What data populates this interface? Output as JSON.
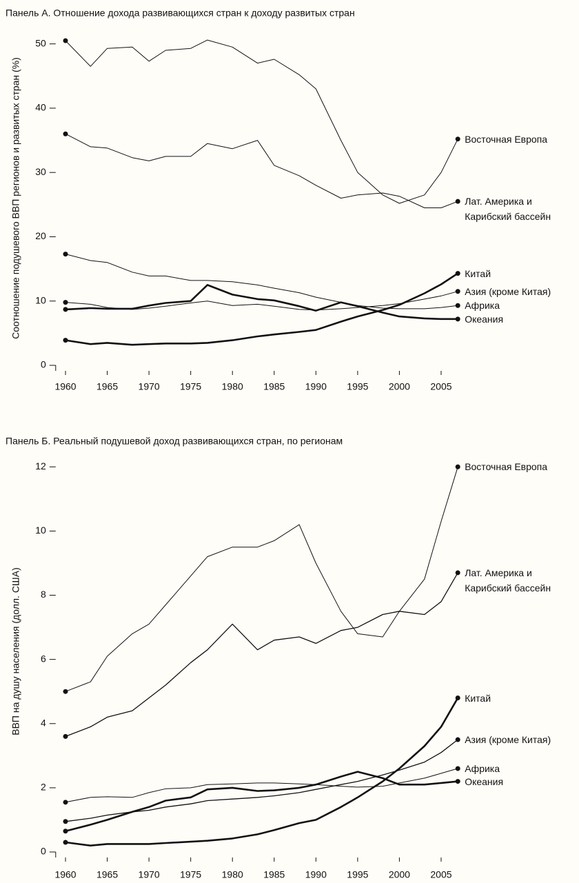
{
  "chart_data": [
    {
      "type": "line",
      "title": "Панель А. Отношение дохода развивающихся стран к доходу развитых стран",
      "y_label": "Соотношение подушевого ВВП регионов и развитых стран (%)",
      "x": [
        1960,
        1963,
        1965,
        1968,
        1970,
        1972,
        1975,
        1977,
        1980,
        1983,
        1985,
        1988,
        1990,
        1993,
        1995,
        1998,
        2000,
        2003,
        2005,
        2007
      ],
      "xlim": [
        1958,
        2008
      ],
      "xticks": [
        1960,
        1965,
        1970,
        1975,
        1980,
        1985,
        1990,
        1995,
        2000,
        2005
      ],
      "ylim": [
        0,
        52
      ],
      "yticks": [
        0,
        10,
        20,
        30,
        40,
        50
      ],
      "markers": true,
      "series": [
        {
          "name": "Восточная Европа",
          "color": "#111111",
          "width": 1,
          "values": [
            50.5,
            46.5,
            49.3,
            49.5,
            47.3,
            49.0,
            49.3,
            50.6,
            49.5,
            47.0,
            47.6,
            45.2,
            43.0,
            35.0,
            30.0,
            26.5,
            25.2,
            26.5,
            30.0,
            35.2
          ]
        },
        {
          "name": "Лат. Америка и\nКарибский бассейн",
          "color": "#111111",
          "width": 1,
          "values": [
            36.0,
            34.0,
            33.8,
            32.3,
            31.8,
            32.5,
            32.5,
            34.5,
            33.7,
            35.0,
            31.1,
            29.5,
            28.0,
            26.0,
            26.5,
            26.8,
            26.3,
            24.5,
            24.5,
            25.5
          ]
        },
        {
          "name": "Китай",
          "color": "#111111",
          "width": 2.6,
          "values": [
            3.9,
            3.3,
            3.5,
            3.2,
            3.3,
            3.4,
            3.4,
            3.5,
            3.9,
            4.5,
            4.8,
            5.2,
            5.5,
            6.8,
            7.6,
            8.6,
            9.4,
            11.2,
            12.6,
            14.3
          ]
        },
        {
          "name": "Азия (кроме Китая)",
          "color": "#111111",
          "width": 1,
          "values": [
            9.8,
            9.5,
            9.0,
            8.7,
            8.9,
            9.2,
            9.7,
            10.0,
            9.3,
            9.5,
            9.2,
            8.7,
            8.6,
            8.8,
            9.0,
            9.3,
            9.6,
            10.3,
            10.8,
            11.5
          ]
        },
        {
          "name": "Африка",
          "color": "#111111",
          "width": 1,
          "values": [
            17.3,
            16.3,
            16.0,
            14.5,
            13.9,
            13.9,
            13.2,
            13.2,
            13.0,
            12.5,
            12.0,
            11.3,
            10.6,
            9.8,
            9.3,
            8.9,
            8.8,
            8.8,
            9.0,
            9.3
          ]
        },
        {
          "name": "Океания",
          "color": "#111111",
          "width": 2.6,
          "values": [
            8.7,
            8.9,
            8.8,
            8.8,
            9.3,
            9.7,
            10.0,
            12.5,
            11.0,
            10.3,
            10.1,
            9.2,
            8.5,
            9.8,
            9.2,
            8.2,
            7.6,
            7.3,
            7.2,
            7.2
          ]
        }
      ]
    },
    {
      "type": "line",
      "title": "Панель Б. Реальный подушевой доход развивающихся стран, по регионам",
      "y_label": "ВВП на душу населения (долл. США)",
      "x": [
        1960,
        1963,
        1965,
        1968,
        1970,
        1972,
        1975,
        1977,
        1980,
        1983,
        1985,
        1988,
        1990,
        1993,
        1995,
        1998,
        2000,
        2003,
        2005,
        2007
      ],
      "xlim": [
        1958,
        2008
      ],
      "xticks": [
        1960,
        1965,
        1970,
        1975,
        1980,
        1985,
        1990,
        1995,
        2000,
        2005
      ],
      "ylim": [
        0,
        12.5
      ],
      "yticks": [
        0,
        2,
        4,
        6,
        8,
        10,
        12
      ],
      "markers": true,
      "series": [
        {
          "name": "Восточная Европа",
          "color": "#111111",
          "width": 1,
          "values": [
            5.0,
            5.3,
            6.1,
            6.8,
            7.1,
            7.7,
            8.6,
            9.2,
            9.5,
            9.5,
            9.7,
            10.2,
            9.0,
            7.5,
            6.8,
            6.7,
            7.5,
            8.5,
            10.3,
            12.0
          ]
        },
        {
          "name": "Лат. Америка и\nКарибский бассейн",
          "color": "#111111",
          "width": 1.3,
          "values": [
            3.6,
            3.9,
            4.2,
            4.4,
            4.8,
            5.2,
            5.9,
            6.3,
            7.1,
            6.3,
            6.6,
            6.7,
            6.5,
            6.9,
            7.0,
            7.4,
            7.5,
            7.4,
            7.8,
            8.7
          ]
        },
        {
          "name": "Китай",
          "color": "#111111",
          "width": 2.6,
          "values": [
            0.3,
            0.2,
            0.25,
            0.25,
            0.25,
            0.28,
            0.32,
            0.35,
            0.42,
            0.55,
            0.68,
            0.9,
            1.0,
            1.4,
            1.7,
            2.2,
            2.6,
            3.3,
            3.9,
            4.8
          ]
        },
        {
          "name": "Азия (кроме Китая)",
          "color": "#111111",
          "width": 1.3,
          "values": [
            0.95,
            1.05,
            1.15,
            1.25,
            1.3,
            1.4,
            1.5,
            1.6,
            1.65,
            1.7,
            1.75,
            1.85,
            1.95,
            2.1,
            2.2,
            2.4,
            2.55,
            2.8,
            3.1,
            3.5
          ]
        },
        {
          "name": "Африка",
          "color": "#111111",
          "width": 1,
          "values": [
            1.55,
            1.7,
            1.72,
            1.7,
            1.85,
            1.97,
            2.0,
            2.1,
            2.12,
            2.15,
            2.15,
            2.12,
            2.1,
            2.05,
            2.02,
            2.05,
            2.15,
            2.3,
            2.45,
            2.6
          ]
        },
        {
          "name": "Океания",
          "color": "#111111",
          "width": 2.6,
          "values": [
            0.65,
            0.85,
            1.0,
            1.25,
            1.4,
            1.6,
            1.7,
            1.95,
            2.0,
            1.9,
            1.92,
            2.0,
            2.1,
            2.35,
            2.5,
            2.3,
            2.1,
            2.1,
            2.15,
            2.2
          ]
        }
      ]
    }
  ]
}
